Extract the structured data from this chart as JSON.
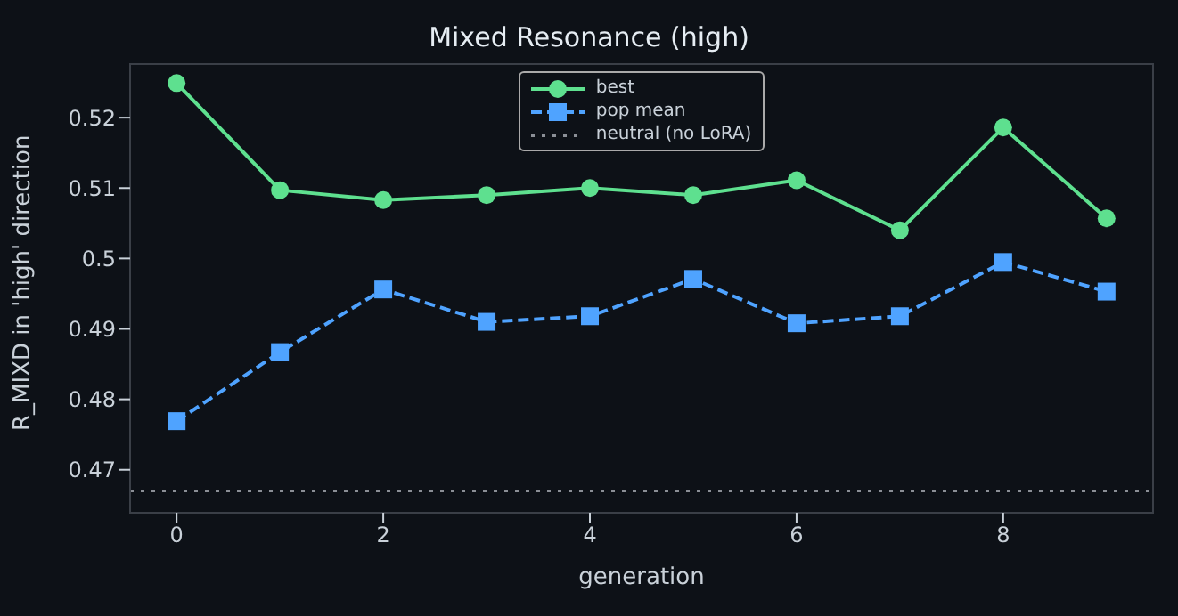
{
  "chart_data": {
    "type": "line",
    "title": "Mixed Resonance (high)",
    "xlabel": "generation",
    "ylabel": "R_MIXD in 'high' direction",
    "x": [
      0,
      1,
      2,
      3,
      4,
      5,
      6,
      7,
      8,
      9
    ],
    "series": [
      {
        "name": "best",
        "color": "#5ee08f",
        "marker": "circle",
        "line_style": "solid",
        "values": [
          0.5249,
          0.5097,
          0.5083,
          0.509,
          0.51,
          0.509,
          0.5111,
          0.504,
          0.5186,
          0.5057
        ]
      },
      {
        "name": "pop mean",
        "color": "#4fa3ff",
        "marker": "square",
        "line_style": "dashed",
        "values": [
          0.4769,
          0.4867,
          0.4956,
          0.491,
          0.4918,
          0.4971,
          0.4908,
          0.4918,
          0.4995,
          0.4953
        ]
      }
    ],
    "ref_lines": [
      {
        "axis": "y",
        "value": 0.467,
        "label": "neutral (no LoRA)",
        "color": "#8b8f96",
        "line_style": "dotted"
      }
    ],
    "xlim": [
      -0.45,
      9.45
    ],
    "xticks": [
      0,
      2,
      4,
      6,
      8
    ],
    "ylim": [
      0.4639,
      0.5276
    ],
    "yticks": [
      0.47,
      0.48,
      0.49,
      0.5,
      0.51,
      0.52
    ],
    "grid": false,
    "legend": "top"
  }
}
